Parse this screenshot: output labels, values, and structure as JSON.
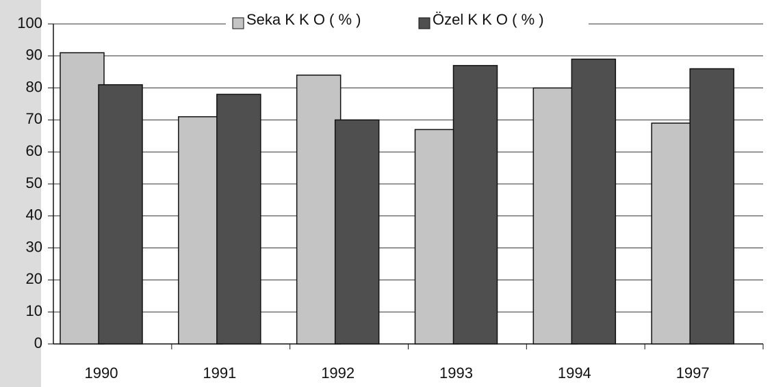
{
  "chart_data": {
    "type": "bar",
    "categories": [
      "1990",
      "1991",
      "1992",
      "1993",
      "1994",
      "1997"
    ],
    "series": [
      {
        "name": "Seka K K O ( % )",
        "color": "#c4c4c4",
        "values": [
          91,
          71,
          84,
          67,
          80,
          69
        ]
      },
      {
        "name": "Özel K K O ( % )",
        "color": "#4f4f4f",
        "values": [
          81,
          78,
          70,
          87,
          89,
          86
        ]
      }
    ],
    "ylim": [
      0,
      100
    ],
    "yticks": [
      0,
      10,
      20,
      30,
      40,
      50,
      60,
      70,
      80,
      90,
      100
    ],
    "grid": true,
    "legend": "top"
  }
}
